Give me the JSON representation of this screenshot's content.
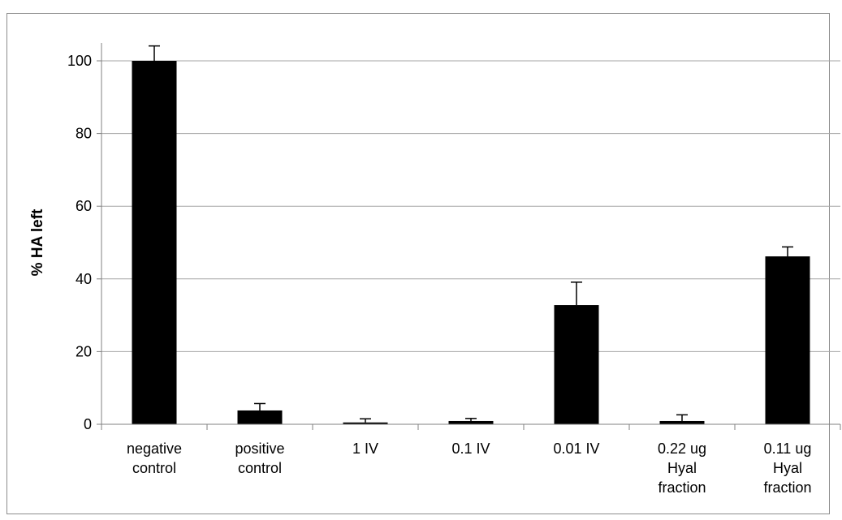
{
  "chart_data": {
    "type": "bar",
    "title": "",
    "xlabel": "",
    "ylabel": "% HA left",
    "ylim": [
      0,
      100
    ],
    "yticks": [
      0,
      20,
      40,
      60,
      80,
      100
    ],
    "grid": true,
    "categories": [
      [
        "negative",
        "control"
      ],
      [
        "positive",
        "control"
      ],
      [
        "1 IV"
      ],
      [
        "0.1 IV"
      ],
      [
        "0.01 IV"
      ],
      [
        "0.22 ug",
        "Hyal",
        "fraction"
      ],
      [
        "0.11 ug",
        "Hyal",
        "fraction"
      ]
    ],
    "values": [
      100,
      3.8,
      0.5,
      0.9,
      32.8,
      0.9,
      46.2
    ],
    "errors": [
      4.1,
      1.9,
      1.0,
      0.7,
      6.3,
      1.7,
      2.6
    ],
    "colors": {
      "bar": "#000000",
      "grid": "#a6a6a6",
      "axis": "#808080"
    }
  }
}
